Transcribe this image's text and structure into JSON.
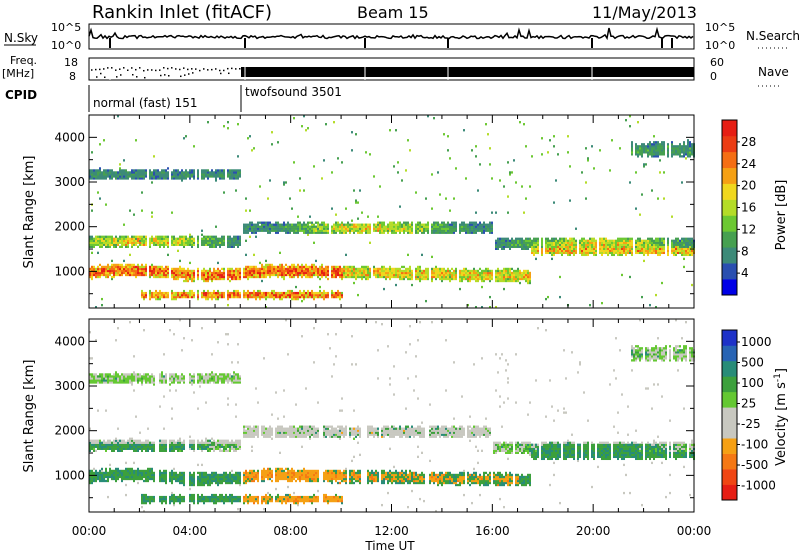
{
  "header": {
    "title": "Rankin Inlet (fitACF)",
    "beam": "Beam 15",
    "date": "11/May/2013"
  },
  "strip": {
    "nsky_label": "N.Sky",
    "nsky_ticks": [
      "10^5",
      "10^0"
    ],
    "nsearch_label": "N.Search",
    "nsearch_ticks": [
      "10^5",
      "10^0"
    ],
    "freq_label": "Freq.",
    "freq_unit": "[MHz]",
    "freq_ticks": [
      "18",
      "8"
    ],
    "nave_label": "Nave",
    "nave_ticks": [
      "60",
      "0"
    ],
    "cpid_label": "CPID",
    "modes": [
      {
        "name": "normal (fast) 151",
        "start_hour": 0,
        "end_hour": 6
      },
      {
        "name": "twofsound 3501",
        "start_hour": 6,
        "end_hour": 24
      }
    ]
  },
  "chart_data": [
    {
      "type": "heatmap",
      "name": "Power",
      "xlabel": "Time UT",
      "ylabel": "Slant Range [km]",
      "xlim": [
        0,
        24
      ],
      "ylim": [
        180,
        4500
      ],
      "x_ticks": [
        "00:00",
        "04:00",
        "08:00",
        "12:00",
        "16:00",
        "20:00",
        "00:00"
      ],
      "y_ticks": [
        1000,
        2000,
        3000,
        4000
      ],
      "colorbar": {
        "label": "Power [dB]",
        "ticks": [
          4,
          8,
          12,
          16,
          20,
          24,
          28
        ],
        "range": [
          0,
          32
        ],
        "colors": [
          "#0000e6",
          "#2a4fb0",
          "#3c8a78",
          "#46a050",
          "#6cc832",
          "#b4dc28",
          "#f0d71e",
          "#f5a014",
          "#f56e14",
          "#eb3c14",
          "#e61e14"
        ]
      }
    },
    {
      "type": "heatmap",
      "name": "Velocity",
      "xlabel": "Time UT",
      "ylabel": "Slant Range [km]",
      "xlim": [
        0,
        24
      ],
      "ylim": [
        180,
        4500
      ],
      "x_ticks": [
        "00:00",
        "04:00",
        "08:00",
        "12:00",
        "16:00",
        "20:00",
        "00:00"
      ],
      "y_ticks": [
        1000,
        2000,
        3000,
        4000
      ],
      "colorbar": {
        "label": "Velocity [m s",
        "label_sup": "-1",
        "label_end": "]",
        "ticks": [
          "1000",
          "500",
          "100",
          "25",
          "-25",
          "-100",
          "-500",
          "-1000"
        ],
        "colors": [
          "#1e32c8",
          "#2864b4",
          "#288c78",
          "#3ca03c",
          "#64c832",
          "#c8c8c0",
          "#c8c8c0",
          "#f5a014",
          "#f57814",
          "#f04614",
          "#e61e14"
        ]
      }
    }
  ],
  "colors": {
    "ground": "#c8c8c0",
    "axis": "#000000"
  }
}
